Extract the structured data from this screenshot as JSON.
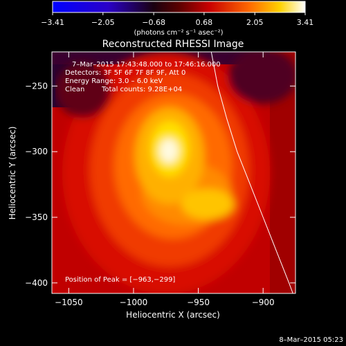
{
  "chart_data": {
    "type": "heatmap",
    "title": "Reconstructed RHESSI Image",
    "xlabel": "Heliocentric X (arcsec)",
    "ylabel": "Heliocentric Y (arcsec)",
    "xlim": [
      -1063,
      -875
    ],
    "ylim": [
      -408,
      -224
    ],
    "x_ticks": [
      -1050,
      -1000,
      -950,
      -900
    ],
    "x_tick_labels": [
      "−1050",
      "−1000",
      "−950",
      "−900"
    ],
    "y_ticks": [
      -250,
      -300,
      -350,
      -400
    ],
    "y_tick_labels": [
      "−250",
      "−300",
      "−350",
      "−400"
    ],
    "colorbar": {
      "colormap": "hot (blue-black-red-yellow-white)",
      "min": -3.41,
      "max": 3.41,
      "ticks": [
        -3.41,
        -2.05,
        -0.68,
        0.68,
        2.05,
        3.41
      ],
      "tick_labels": [
        "−3.41",
        "−2.05",
        "−0.68",
        "0.68",
        "2.05",
        "3.41"
      ],
      "unit_label": "(photons cm⁻² s⁻¹ asec⁻²)"
    },
    "annotations": {
      "time_range": "7–Mar–2015 17:43:48.000 to 17:46:16.000",
      "detectors": "Detectors: 3F 5F 6F 7F 8F 9F, Att 0",
      "energy": "Energy Range: 3.0 – 6.0 keV",
      "method": "Clean",
      "counts": "Total counts: 9.28E+04",
      "peak": "Position of Peak = [−963,−299]"
    },
    "peak": [
      -963,
      -299
    ],
    "limb_curve": [
      [
        -940,
        -224
      ],
      [
        -935,
        -250
      ],
      [
        -928,
        -275
      ],
      [
        -920,
        -300
      ],
      [
        -910,
        -325
      ],
      [
        -900,
        -350
      ],
      [
        -890,
        -375
      ],
      [
        -880,
        -400
      ],
      [
        -877,
        -408
      ]
    ],
    "footer_date": "8–Mar–2015 05:23"
  }
}
